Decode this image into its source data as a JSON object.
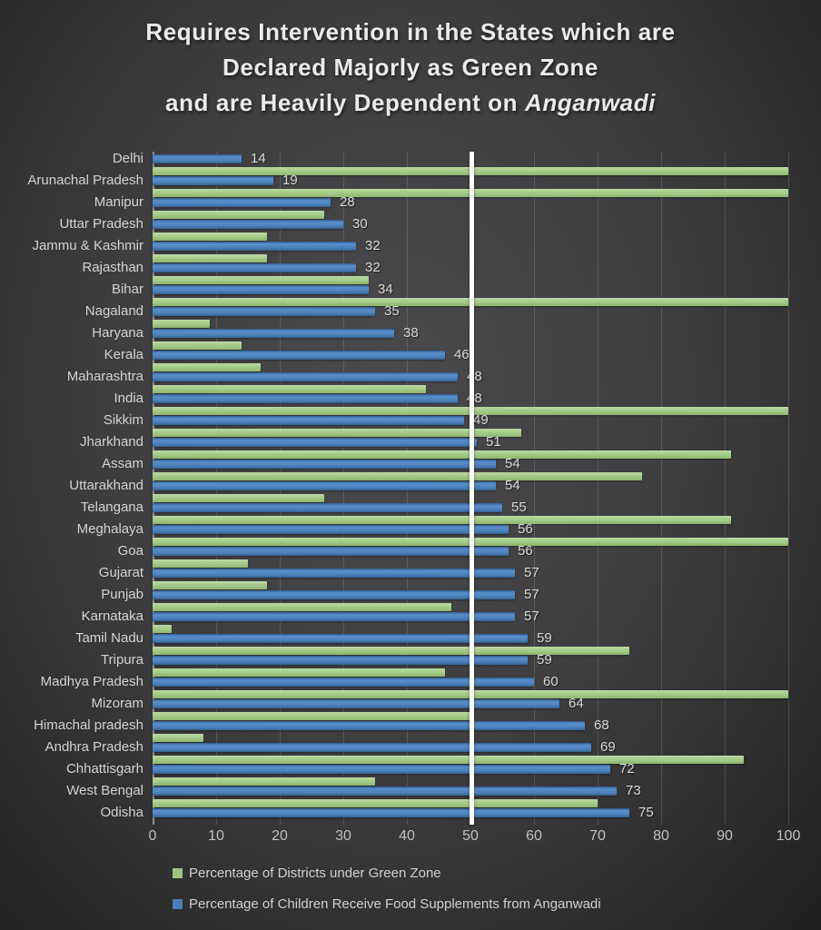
{
  "title": {
    "line1": "Requires Intervention in the States which are",
    "line2": "Declared Majorly as Green Zone",
    "line3_prefix": "and are Heavily Dependent on ",
    "line3_italic": "Anganwadi"
  },
  "chart_data": {
    "type": "bar",
    "orientation": "horizontal",
    "categories": [
      "Delhi",
      "Arunachal Pradesh",
      "Manipur",
      "Uttar Pradesh",
      "Jammu & Kashmir",
      "Rajasthan",
      "Bihar",
      "Nagaland",
      "Haryana",
      "Kerala",
      "Maharashtra",
      "India",
      "Sikkim",
      "Jharkhand",
      "Assam",
      "Uttarakhand",
      "Telangana",
      "Meghalaya",
      "Goa",
      "Gujarat",
      "Punjab",
      "Karnataka",
      "Tamil Nadu",
      "Tripura",
      "Madhya Pradesh",
      "Mizoram",
      "Himachal pradesh",
      "Andhra Pradesh",
      "Chhattisgarh",
      "West Bengal",
      "Odisha"
    ],
    "series": [
      {
        "name": "Percentage of Districts under Green Zone",
        "color": "#9CC47E",
        "values": [
          0,
          100,
          100,
          27,
          18,
          18,
          34,
          100,
          9,
          14,
          17,
          43,
          100,
          58,
          91,
          77,
          27,
          91,
          100,
          15,
          18,
          47,
          3,
          75,
          46,
          100,
          50,
          8,
          93,
          35,
          70
        ],
        "data_labels": false
      },
      {
        "name": "Percentage of Children Receive Food Supplements from Anganwadi",
        "color": "#4A7EBB",
        "values": [
          14,
          19,
          28,
          30,
          32,
          32,
          34,
          35,
          38,
          46,
          48,
          48,
          49,
          51,
          54,
          54,
          55,
          56,
          56,
          57,
          57,
          57,
          59,
          59,
          60,
          64,
          68,
          69,
          72,
          73,
          75
        ],
        "data_labels": true
      }
    ],
    "xlim": [
      0,
      100
    ],
    "xticks": [
      0,
      10,
      20,
      30,
      40,
      50,
      60,
      70,
      80,
      90,
      100
    ],
    "reference_line": {
      "value": 50,
      "color": "#ffffff"
    },
    "grid": true,
    "legend_position": "bottom-left",
    "label_color": "#d9d9d9"
  }
}
